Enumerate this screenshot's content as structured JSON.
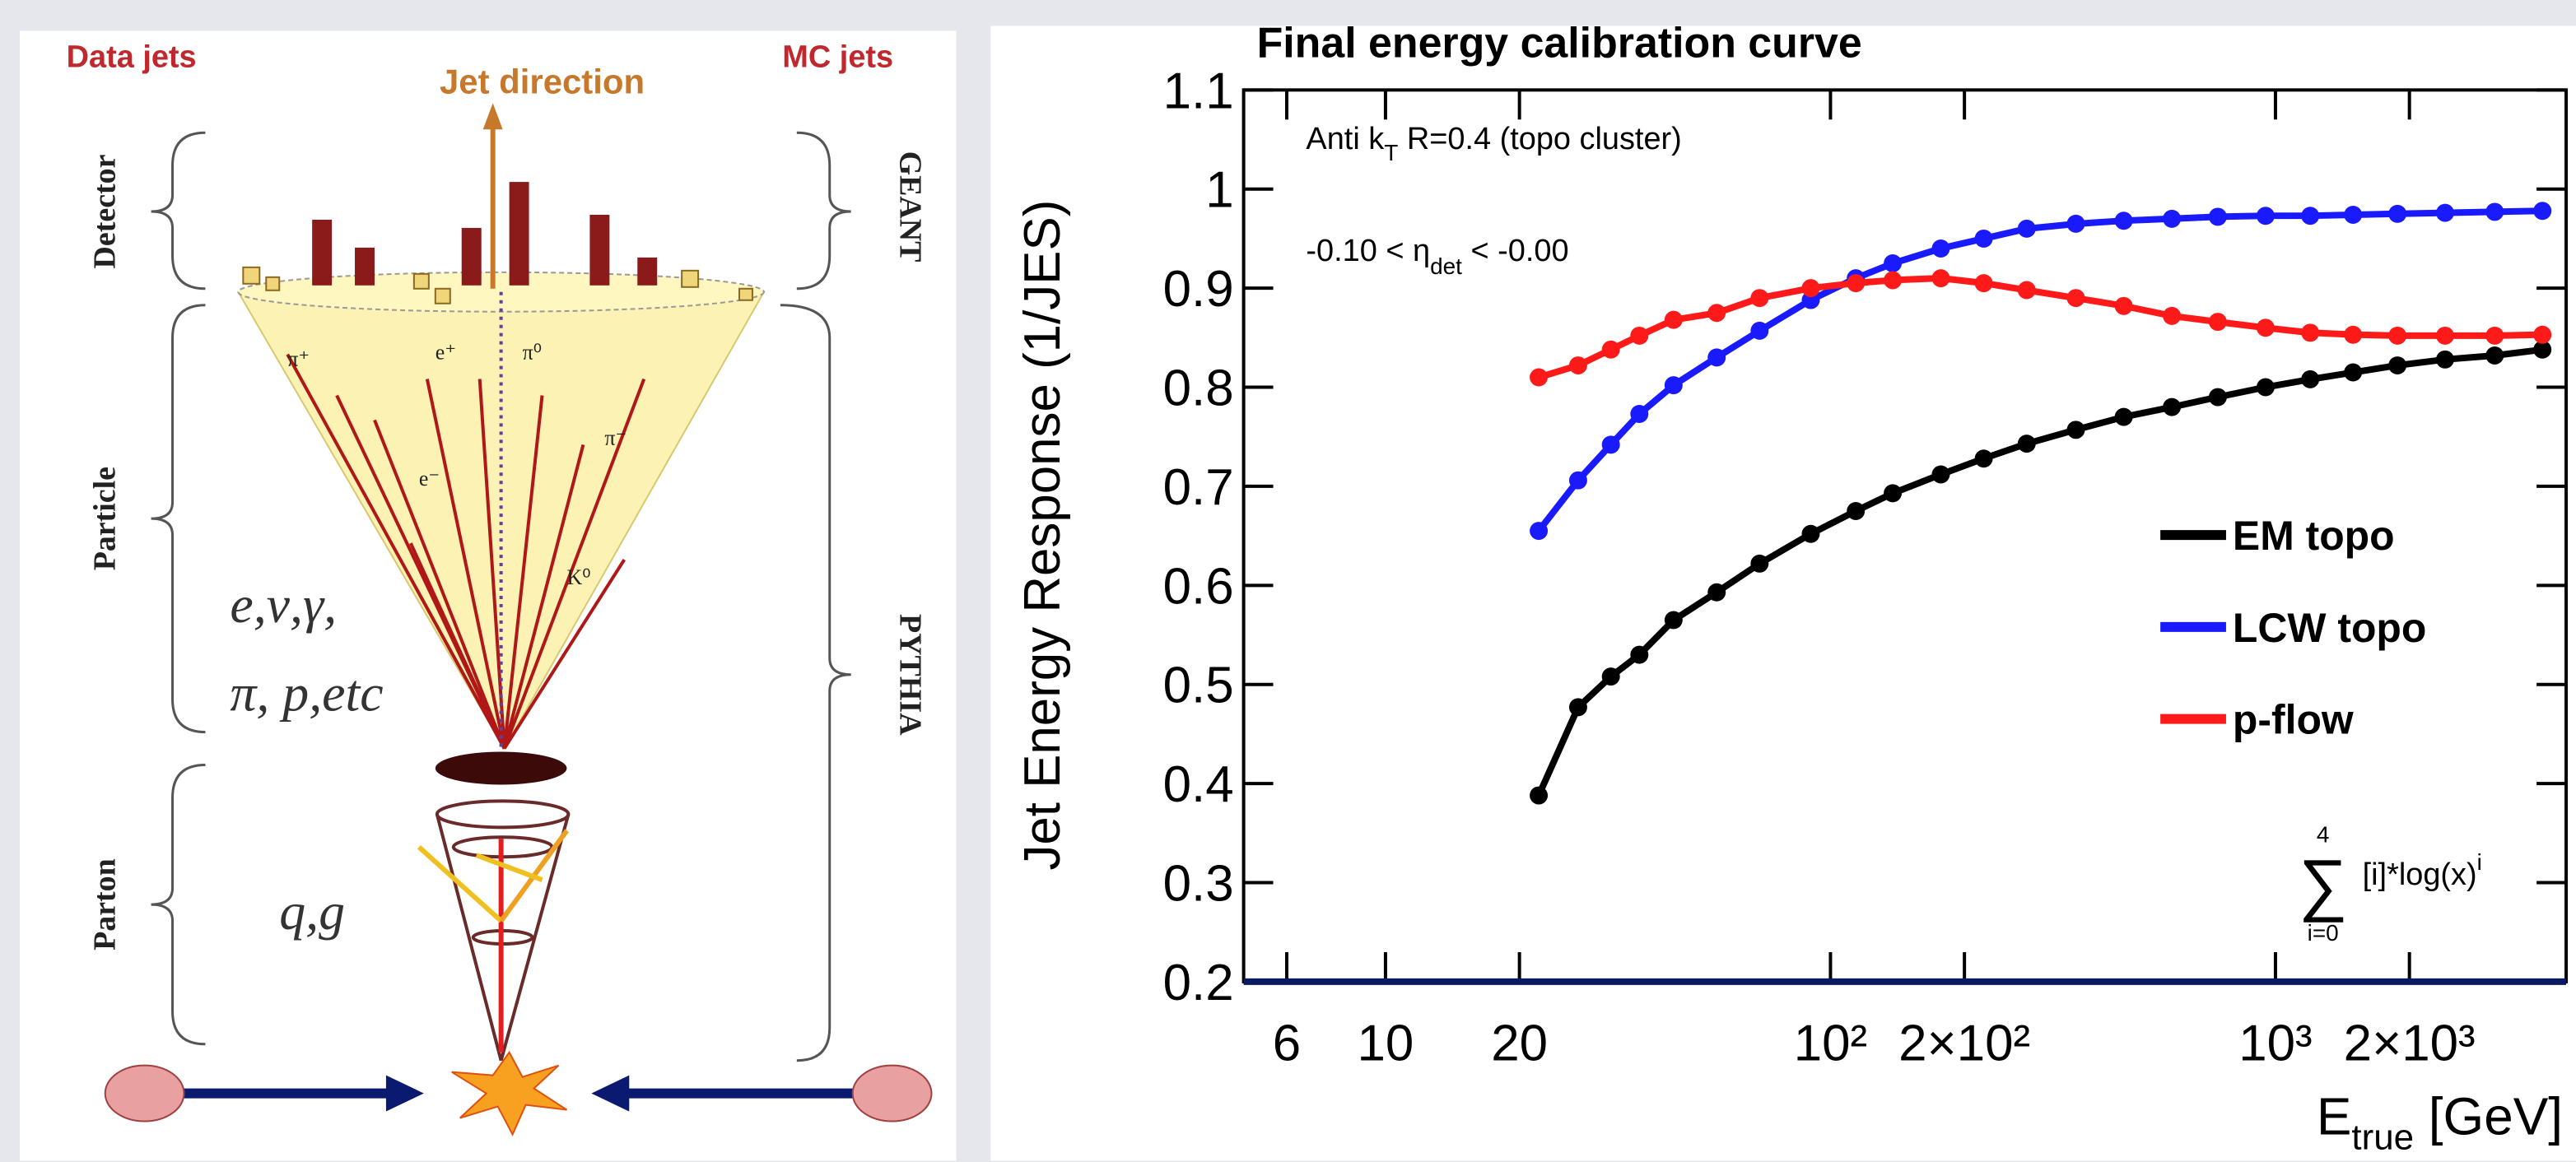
{
  "diagram": {
    "data_label": "Data jets",
    "direction_label": "Jet direction",
    "mc_label": "MC jets",
    "levels_left": [
      "Detector",
      "Particle",
      "Parton"
    ],
    "levels_right": [
      "GEANT",
      "PYTHIA"
    ],
    "particles": [
      "π⁺",
      "e⁺",
      "π⁰",
      "π⁻",
      "e⁻",
      "K⁰"
    ],
    "particle_text": [
      "e,ν,γ,",
      "π, p,etc"
    ],
    "parton_text": "q,g"
  },
  "chart_data": {
    "type": "scatter",
    "title": "Final energy calibration curve",
    "annotations": {
      "jet_algo": {
        "text": "Anti k",
        "sub": "T",
        "rest": " R=0.4 (topo cluster)"
      },
      "eta": {
        "text": "-0.10 < η",
        "sub": "det",
        "rest": " < -0.00"
      },
      "fit": {
        "upper": "4",
        "symbol": "∑",
        "text": "[i]*log(x)",
        "sup": "i",
        "lower": "i=0"
      }
    },
    "xlabel": {
      "text": "E",
      "sub": "true",
      "rest": " [GeV]"
    },
    "ylabel": "Jet Energy Response (1/JES)",
    "xscale": "log",
    "xlim": [
      4.8,
      4500
    ],
    "ylim": [
      0.2,
      1.1
    ],
    "xticks": [
      6,
      10,
      20,
      {
        "value": 100,
        "label": "10²"
      },
      {
        "value": 200,
        "label": "2×10²"
      },
      {
        "value": 1000,
        "label": "10³"
      },
      {
        "value": 2000,
        "label": "2×10³"
      }
    ],
    "yticks": [
      0.2,
      0.3,
      0.4,
      0.5,
      0.6,
      0.7,
      0.8,
      0.9,
      1,
      1.1
    ],
    "legend": "right",
    "x": [
      22.1,
      27.1,
      32.1,
      37.2,
      44.4,
      55.5,
      69.3,
      90.3,
      114,
      138,
      177,
      221,
      276,
      356,
      456,
      585,
      742,
      950,
      1197,
      1494,
      1880,
      2405,
      3110,
      3980
    ],
    "series": [
      {
        "name": "EM topo",
        "color": "#000000",
        "values": [
          0.388,
          0.477,
          0.508,
          0.53,
          0.565,
          0.593,
          0.622,
          0.652,
          0.675,
          0.693,
          0.712,
          0.728,
          0.743,
          0.757,
          0.77,
          0.78,
          0.79,
          0.8,
          0.808,
          0.815,
          0.822,
          0.828,
          0.832,
          0.838
        ]
      },
      {
        "name": "LCW topo",
        "color": "#1a1aff",
        "values": [
          0.655,
          0.706,
          0.742,
          0.773,
          0.802,
          0.83,
          0.857,
          0.888,
          0.91,
          0.925,
          0.94,
          0.95,
          0.96,
          0.965,
          0.968,
          0.97,
          0.972,
          0.973,
          0.973,
          0.974,
          0.975,
          0.976,
          0.977,
          0.978
        ]
      },
      {
        "name": "p-flow",
        "color": "#ff1a1a",
        "values": [
          0.81,
          0.822,
          0.838,
          0.852,
          0.868,
          0.875,
          0.89,
          0.9,
          0.905,
          0.908,
          0.91,
          0.905,
          0.898,
          0.89,
          0.882,
          0.872,
          0.866,
          0.86,
          0.855,
          0.853,
          0.852,
          0.852,
          0.852,
          0.853
        ]
      }
    ]
  }
}
